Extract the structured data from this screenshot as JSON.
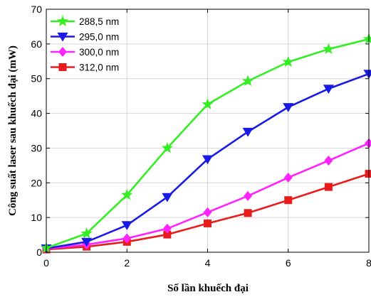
{
  "chart_data": {
    "type": "line",
    "title": "",
    "xlabel": "Số lần khuếch đại",
    "ylabel": "Công suất laser sau khuếch đại (mW)",
    "xlim": [
      0,
      8
    ],
    "ylim": [
      0,
      70
    ],
    "xticks": [
      0,
      2,
      4,
      6,
      8
    ],
    "yticks": [
      0,
      10,
      20,
      30,
      40,
      50,
      60,
      70
    ],
    "xtick_labels": [
      "0",
      "2",
      "4",
      "6",
      "8"
    ],
    "ytick_labels": [
      "0",
      "10",
      "20",
      "30",
      "40",
      "50",
      "60",
      "70"
    ],
    "grid": true,
    "legend_position": "top-left",
    "x": [
      0,
      1,
      2,
      3,
      4,
      5,
      6,
      7,
      8
    ],
    "series": [
      {
        "name": "288,5 nm",
        "color": "#33ee22",
        "marker": "star",
        "values": [
          1.2,
          5.4,
          16.5,
          30.0,
          42.6,
          49.3,
          54.8,
          58.5,
          61.4
        ]
      },
      {
        "name": "295,0 nm",
        "color": "#1a1ae6",
        "marker": "triangle-down",
        "values": [
          1.1,
          3.0,
          7.8,
          15.9,
          26.8,
          34.7,
          41.8,
          47.1,
          51.4
        ]
      },
      {
        "name": "300,0 nm",
        "color": "#ff22ff",
        "marker": "diamond",
        "values": [
          1.0,
          2.2,
          4.0,
          6.8,
          11.5,
          16.2,
          21.5,
          26.4,
          31.4
        ]
      },
      {
        "name": "312,0 nm",
        "color": "#e81c1c",
        "marker": "square",
        "values": [
          0.8,
          1.6,
          3.0,
          5.1,
          8.3,
          11.3,
          15.0,
          18.8,
          22.6
        ]
      }
    ]
  }
}
